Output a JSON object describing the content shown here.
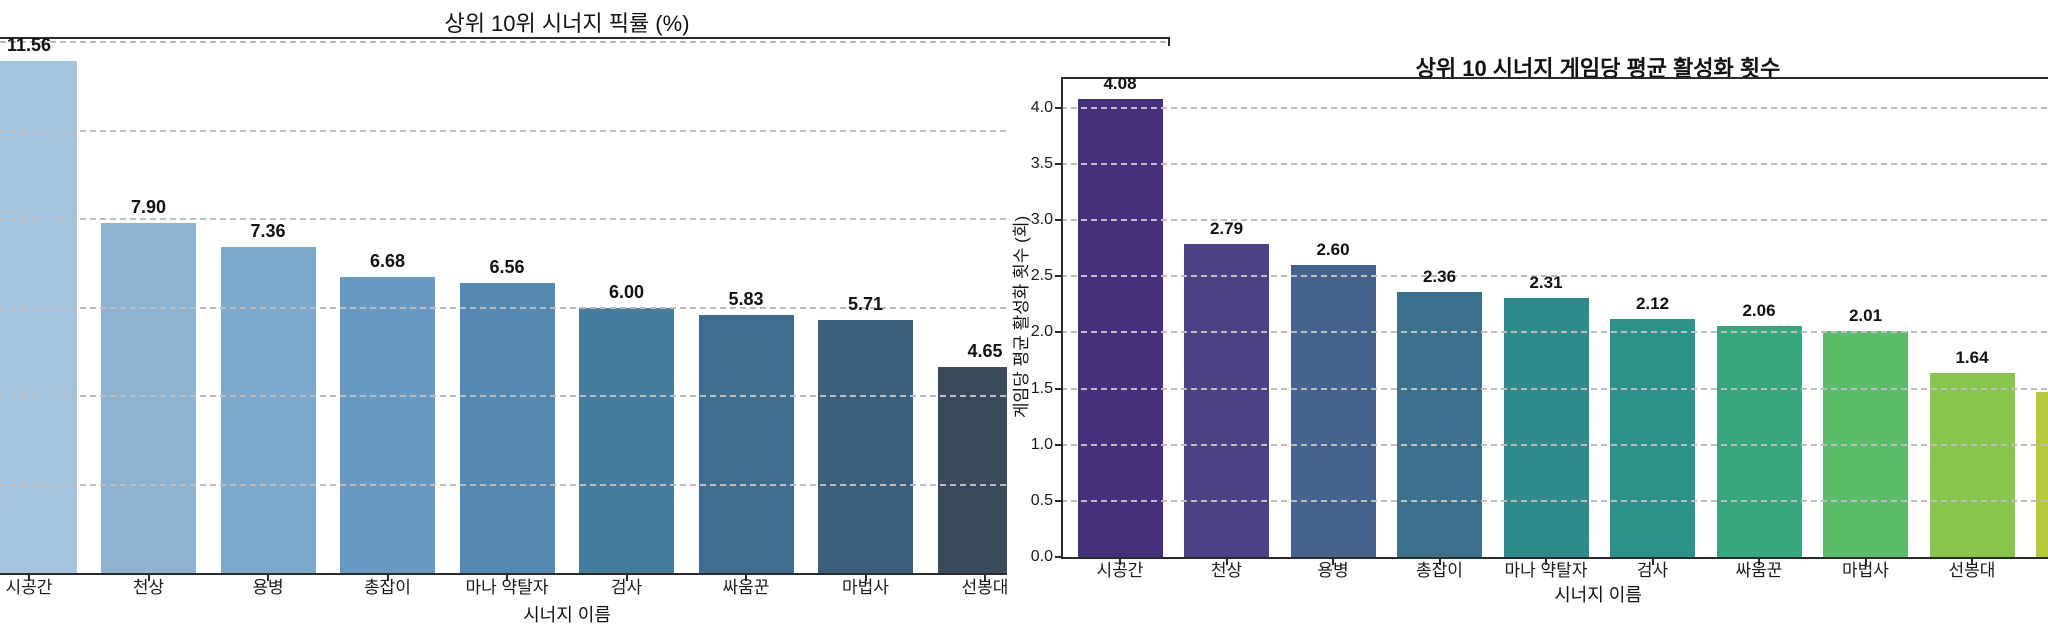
{
  "chart_data": [
    {
      "type": "bar",
      "title": "상위 10위 시너지 픽률 (%)",
      "xlabel": "시너지 이름",
      "ylabel": "",
      "categories": [
        "시공간",
        "천상",
        "용병",
        "총잡이",
        "마나 약탈자",
        "검사",
        "싸움꾼",
        "마법사",
        "선봉대"
      ],
      "values": [
        11.56,
        7.9,
        7.36,
        6.68,
        6.56,
        6.0,
        5.83,
        5.71,
        4.65
      ],
      "value_labels": [
        "11.56",
        "7.90",
        "7.36",
        "6.68",
        "6.56",
        "6.00",
        "5.83",
        "5.71",
        "4.65"
      ],
      "colors": [
        "#a5c4de",
        "#8eb3d3",
        "#7ca8cb",
        "#6899c3",
        "#5489b3",
        "#437c9f",
        "#3e6e8e",
        "#3c607b",
        "#394b5b"
      ],
      "ylim": [
        0,
        12.2
      ],
      "grid_values": [
        2,
        4,
        6,
        8,
        10,
        12
      ],
      "grid_style": "dashed",
      "legend": "none",
      "clipped": "left edge and 10th bar hidden behind right figure"
    },
    {
      "type": "bar",
      "title": "상위 10 시너지 게임당 평균 활성화 횟수",
      "xlabel": "시너지 이름",
      "ylabel": "게임당 평균 활성화 횟수 (회)",
      "categories": [
        "시공간",
        "천상",
        "용병",
        "총잡이",
        "마나 약탈자",
        "검사",
        "싸움꾼",
        "마법사",
        "선봉대",
        ""
      ],
      "values": [
        4.08,
        2.79,
        2.6,
        2.36,
        2.31,
        2.12,
        2.06,
        2.01,
        1.64,
        1.47
      ],
      "value_labels": [
        "4.08",
        "2.79",
        "2.60",
        "2.36",
        "2.31",
        "2.12",
        "2.06",
        "2.01",
        "1.64",
        ""
      ],
      "colors": [
        "#462f7c",
        "#4b4386",
        "#45618e",
        "#3b708d",
        "#2f8a8b",
        "#2b9289",
        "#37a77e",
        "#5abd6a",
        "#87c64d",
        "#b7cb3a"
      ],
      "ylim": [
        0,
        4.27
      ],
      "yticks": [
        "0.0",
        "0.5",
        "1.0",
        "1.5",
        "2.0",
        "2.5",
        "3.0",
        "3.5",
        "4.0"
      ],
      "grid_values": [
        0.5,
        1.0,
        1.5,
        2.0,
        2.5,
        3.0,
        3.5,
        4.0
      ],
      "grid_style": "dashed",
      "legend": "none",
      "clipped": "10th bar and its labels cut off at right edge"
    }
  ]
}
